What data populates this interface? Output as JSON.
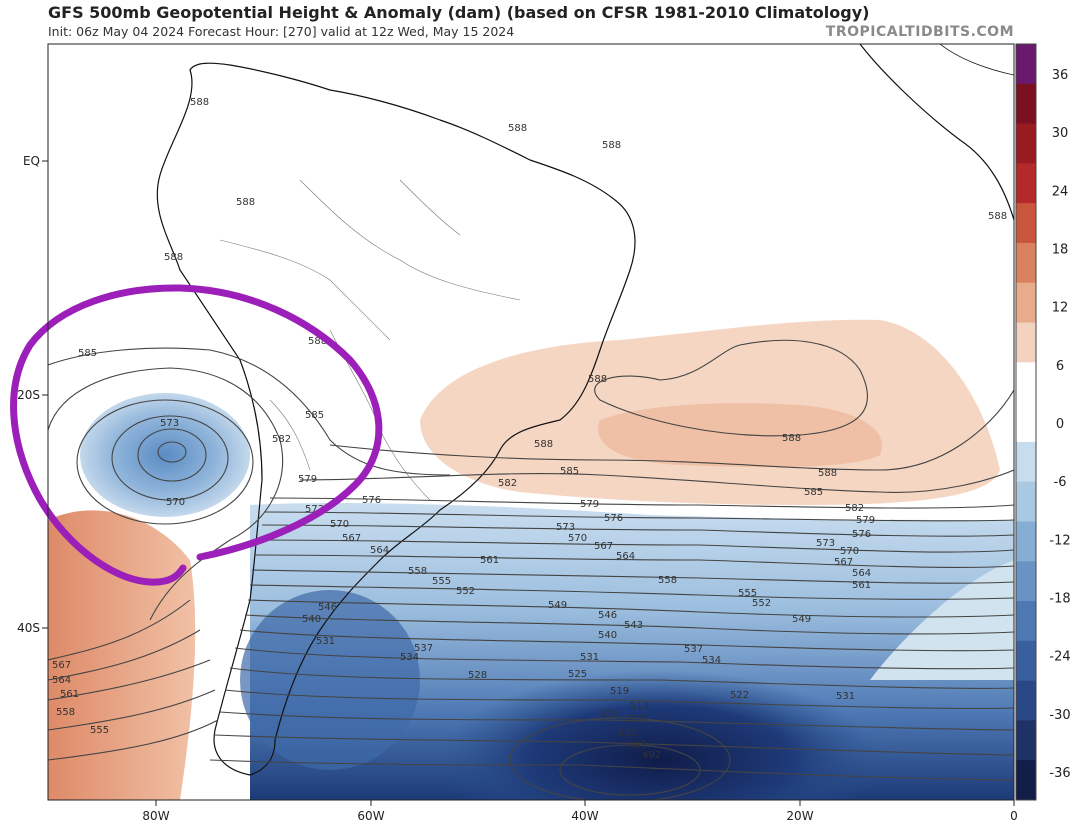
{
  "header": {
    "title": "GFS 500mb Geopotential Height & Anomaly (dam) (based on CFSR 1981-2010 Climatology)",
    "subtitle": "Init: 06z May 04 2024   Forecast Hour: [270]   valid at 12z Wed, May 15 2024",
    "brand": "TROPICALTIDBITS.COM"
  },
  "map": {
    "longitude_labels": [
      "80W",
      "60W",
      "40W",
      "20W",
      "0"
    ],
    "latitude_labels": [
      "EQ",
      "20S",
      "40S"
    ],
    "height_contour_labels": [
      "588",
      "585",
      "582",
      "579",
      "576",
      "573",
      "570",
      "567",
      "564",
      "561",
      "558",
      "555",
      "552",
      "549",
      "546",
      "543",
      "540",
      "537",
      "534",
      "531",
      "528",
      "525",
      "522",
      "519",
      "513",
      "510",
      "507",
      "501",
      "495",
      "492"
    ],
    "low_center_label": "573",
    "low_inner_label": "570",
    "annotation": "purple hand-drawn circle around cut-off low off Chile coast"
  },
  "colorbar": {
    "labels": [
      "36",
      "30",
      "24",
      "18",
      "12",
      "6",
      "0",
      "-6",
      "-12",
      "-18",
      "-24",
      "-30",
      "-36"
    ],
    "colors": [
      "#6a1a6e",
      "#7a1020",
      "#9a1a22",
      "#b42a2a",
      "#c9563c",
      "#da8260",
      "#e8ab8c",
      "#f3d2bf",
      "#ffffff",
      "#ffffff",
      "#c7dcec",
      "#a9c8e2",
      "#86aed4",
      "#6893c4",
      "#4e78b2",
      "#3a5f9e",
      "#2a4786",
      "#1e3266",
      "#121d48"
    ]
  },
  "colors": {
    "positive_anomaly": "#f4d2bd",
    "strong_positive": "#e39a78",
    "negative_anomaly": "#b7d0e6",
    "strong_negative": "#2b4f8c",
    "annotation": "#9b1fb8"
  }
}
